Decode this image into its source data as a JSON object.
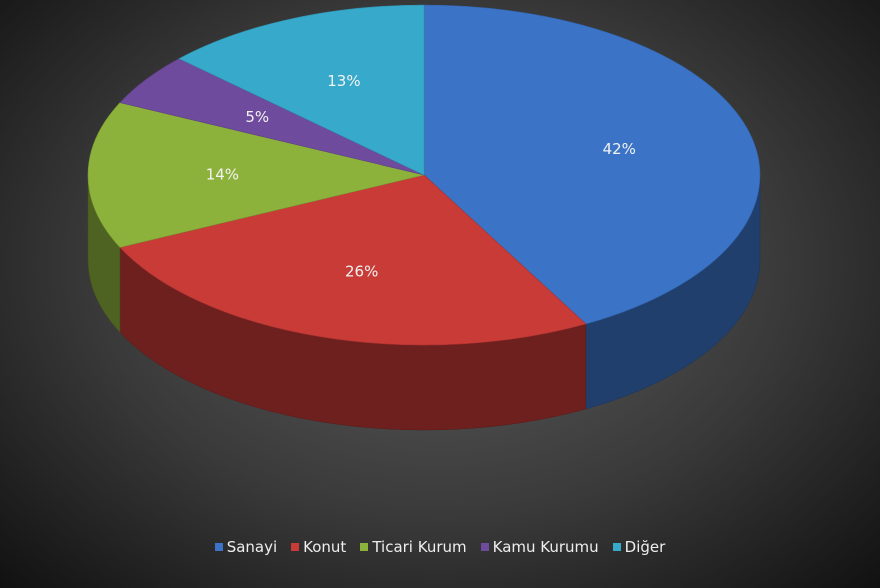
{
  "chart_data": {
    "type": "pie",
    "categories": [
      "Sanayi",
      "Konut",
      "Ticari Kurum",
      "Kamu Kurumu",
      "Diğer"
    ],
    "values": [
      42,
      26,
      14,
      5,
      13
    ],
    "value_labels": [
      "42%",
      "26%",
      "14%",
      "5%",
      "13%"
    ],
    "colors": [
      "#3b73c6",
      "#c83b37",
      "#8db23c",
      "#6e4b9c",
      "#37a9cb"
    ],
    "legend": "bottom"
  }
}
